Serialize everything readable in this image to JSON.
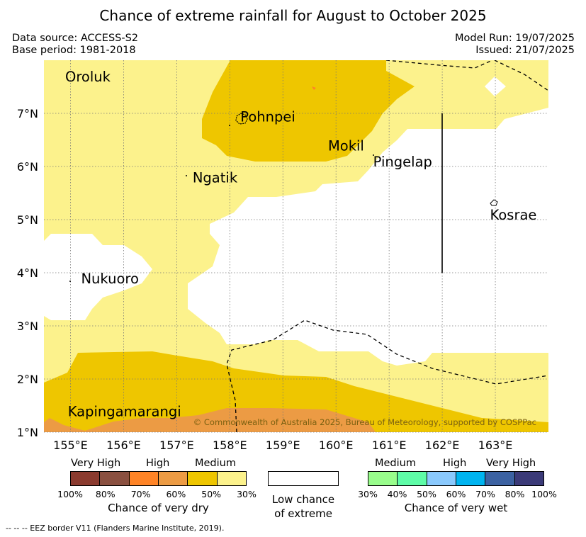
{
  "title": "Chance of extreme rainfall for August to October 2025",
  "meta": {
    "data_source": "Data source: ACCESS-S2",
    "base_period": "Base period: 1981-2018",
    "model_run": "Model Run: 19/07/2025",
    "issued": "Issued: 21/07/2025"
  },
  "map": {
    "lon_range": [
      154.5,
      164.0
    ],
    "lat_range": [
      1.0,
      8.0
    ],
    "lon_ticks": [
      "155°E",
      "156°E",
      "157°E",
      "158°E",
      "159°E",
      "160°E",
      "161°E",
      "162°E",
      "163°E"
    ],
    "lat_ticks": [
      "1°N",
      "2°N",
      "3°N",
      "4°N",
      "5°N",
      "6°N",
      "7°N"
    ],
    "places": [
      {
        "name": "Oroluk",
        "lon": 154.9,
        "lat": 7.6
      },
      {
        "name": "Pohnpei",
        "lon": 158.2,
        "lat": 6.85
      },
      {
        "name": "Mokil",
        "lon": 159.85,
        "lat": 6.3
      },
      {
        "name": "Pingelap",
        "lon": 160.7,
        "lat": 6.0
      },
      {
        "name": "Ngatik",
        "lon": 157.3,
        "lat": 5.7
      },
      {
        "name": "Kosrae",
        "lon": 162.9,
        "lat": 5.0
      },
      {
        "name": "Nukuoro",
        "lon": 155.2,
        "lat": 3.8
      },
      {
        "name": "Kapingamarangi",
        "lon": 154.95,
        "lat": 1.3
      }
    ],
    "copyright": "© Commonwealth of Australia 2025, Bureau of Meteorology, supported by COSPPac"
  },
  "legend": {
    "dry": {
      "headers": [
        "Very High",
        "High",
        "Medium"
      ],
      "colors": [
        "#8b3b2f",
        "#8a5040",
        "#ff8426",
        "#ec9b44",
        "#eec600",
        "#fcf28c"
      ],
      "percents": [
        "100%",
        "80%",
        "70%",
        "60%",
        "50%",
        "30%"
      ],
      "caption": "Chance of very dry"
    },
    "low": {
      "line1": "Low chance",
      "line2": "of extreme"
    },
    "wet": {
      "headers": [
        "Medium",
        "High",
        "Very High"
      ],
      "colors": [
        "#99fd8c",
        "#5efca7",
        "#8ac9fd",
        "#00b4f0",
        "#3c62a2",
        "#3b3a78"
      ],
      "percents": [
        "30%",
        "40%",
        "50%",
        "60%",
        "70%",
        "80%",
        "100%"
      ],
      "caption": "Chance of very wet"
    }
  },
  "eez_note": "-- -- -- EEZ border V11 (Flanders Marine Institute, 2019)."
}
